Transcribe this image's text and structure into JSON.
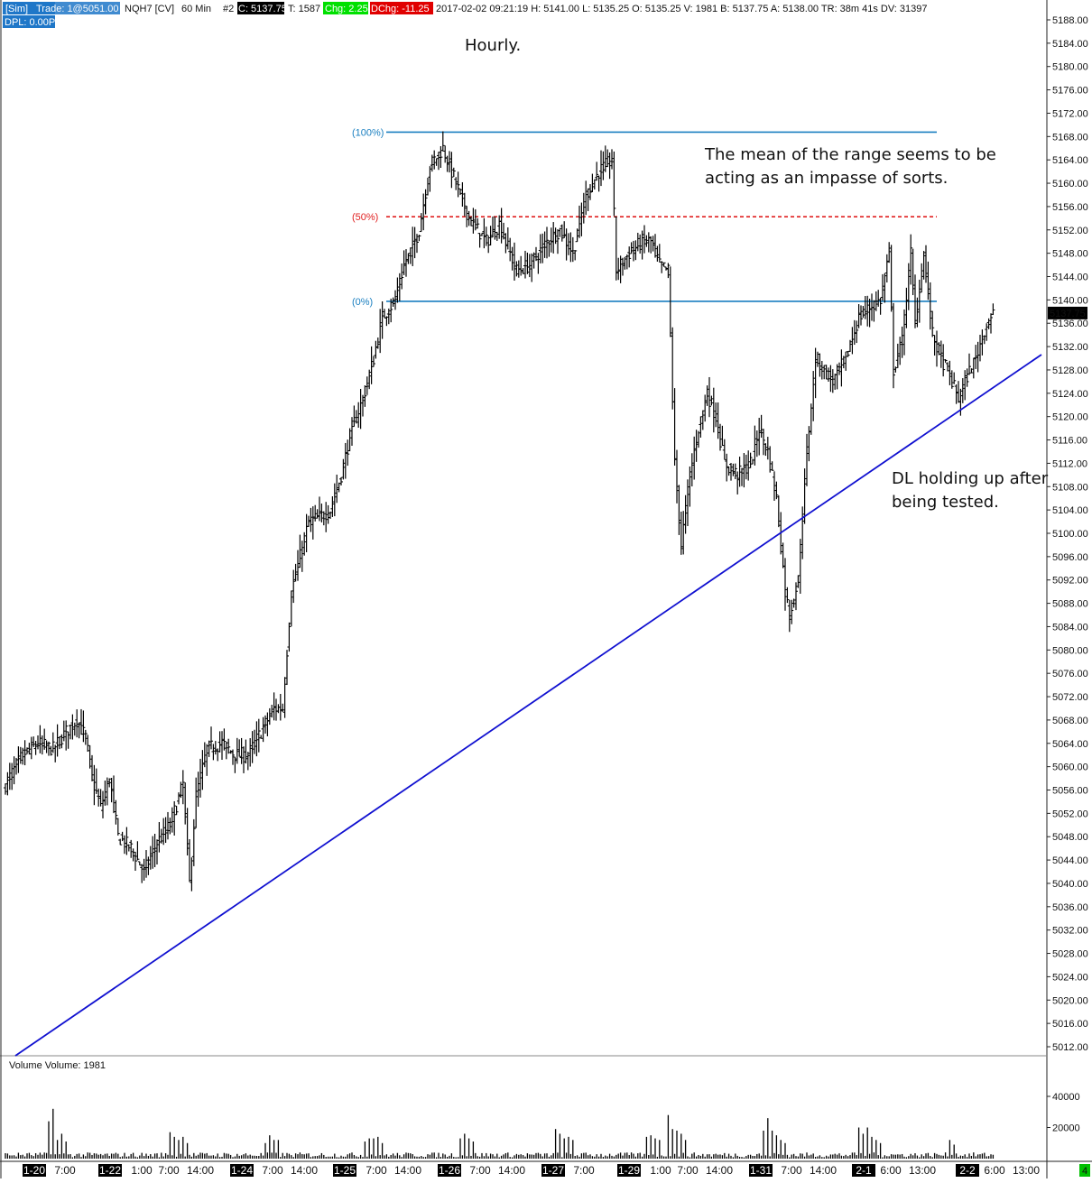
{
  "header": {
    "sim": "[Sim]",
    "trade": "Trade: 1@5051.00",
    "symbol": "NQH7 [CV]",
    "interval": "60 Min",
    "num": "#2",
    "close": "C: 5137.75",
    "trades": "T: 1587",
    "chg": "Chg: 2.25",
    "dchg": "DChg: -11.25",
    "info": "2017-02-02 09:21:19 H: 5141.00 L: 5135.25 O: 5135.25 V: 1981 B: 5137.75 A: 5138.00 TR: 38m 41s DV: 31397",
    "dpl": "DPL: 0.00P"
  },
  "colors": {
    "up_sim": "#1f77c8",
    "green": "#00e000",
    "red": "#e00000",
    "fib": "#1a7fc0",
    "fib_mid": "#e02020",
    "trendline": "#1010d0",
    "bar": "#000000"
  },
  "annotations": {
    "title": "Hourly.",
    "mean_line1": "The mean of the range seems to be",
    "mean_line2": "acting as an impasse of sorts.",
    "dl_line1": "DL holding up after",
    "dl_line2": "being tested."
  },
  "volume_label": "Volume  Volume: 1981",
  "corner_badge": "4",
  "chart_data": {
    "type": "ohlc",
    "price_ticks": [
      "5188.00",
      "5184.00",
      "5180.00",
      "5176.00",
      "5172.00",
      "5168.00",
      "5164.00",
      "5160.00",
      "5156.00",
      "5152.00",
      "5148.00",
      "5144.00",
      "5140.00",
      "5136.00",
      "5132.00",
      "5128.00",
      "5124.00",
      "5120.00",
      "5116.00",
      "5112.00",
      "5108.00",
      "5104.00",
      "5100.00",
      "5096.00",
      "5092.00",
      "5088.00",
      "5084.00",
      "5080.00",
      "5076.00",
      "5072.00",
      "5068.00",
      "5064.00",
      "5060.00",
      "5056.00",
      "5052.00",
      "5048.00",
      "5044.00",
      "5040.00",
      "5036.00",
      "5032.00",
      "5028.00",
      "5024.00",
      "5020.00",
      "5016.00",
      "5012.00"
    ],
    "ylim": [
      5009,
      5190
    ],
    "last_price_label": "5137.75",
    "last_price": 5137.75,
    "volume_ticks": [
      "40000",
      "20000"
    ],
    "volume_ylim": [
      0,
      55000
    ],
    "x_labels": [
      {
        "text": "1-20",
        "day": true
      },
      {
        "text": "7:00",
        "day": false
      },
      {
        "text": "1-22",
        "day": true
      },
      {
        "text": "1:00",
        "day": false
      },
      {
        "text": "7:00",
        "day": false
      },
      {
        "text": "14:00",
        "day": false
      },
      {
        "text": "1-24",
        "day": true
      },
      {
        "text": "7:00",
        "day": false
      },
      {
        "text": "14:00",
        "day": false
      },
      {
        "text": "1-25",
        "day": true
      },
      {
        "text": "7:00",
        "day": false
      },
      {
        "text": "14:00",
        "day": false
      },
      {
        "text": "1-26",
        "day": true
      },
      {
        "text": "7:00",
        "day": false
      },
      {
        "text": "14:00",
        "day": false
      },
      {
        "text": "1-27",
        "day": true
      },
      {
        "text": "7:00",
        "day": false
      },
      {
        "text": "1-29",
        "day": true
      },
      {
        "text": "1:00",
        "day": false
      },
      {
        "text": "7:00",
        "day": false
      },
      {
        "text": "14:00",
        "day": false
      },
      {
        "text": "1-31",
        "day": true
      },
      {
        "text": "7:00",
        "day": false
      },
      {
        "text": "14:00",
        "day": false
      },
      {
        "text": "2-1",
        "day": true
      },
      {
        "text": "6:00",
        "day": false
      },
      {
        "text": "13:00",
        "day": false
      },
      {
        "text": "2-2",
        "day": true
      },
      {
        "text": "6:00",
        "day": false
      },
      {
        "text": "13:00",
        "day": false
      }
    ],
    "fib_levels": [
      {
        "label": "(100%)",
        "price": 5168.75
      },
      {
        "label": "(50%)",
        "price": 5154.25
      },
      {
        "label": "(0%)",
        "price": 5139.75
      }
    ],
    "price_anchors": [
      [
        0,
        5057
      ],
      [
        8,
        5062
      ],
      [
        15,
        5064
      ],
      [
        22,
        5063
      ],
      [
        28,
        5066
      ],
      [
        33,
        5068
      ],
      [
        37,
        5065
      ],
      [
        40,
        5058
      ],
      [
        44,
        5053
      ],
      [
        48,
        5058
      ],
      [
        52,
        5048
      ],
      [
        58,
        5046
      ],
      [
        64,
        5042
      ],
      [
        70,
        5047
      ],
      [
        76,
        5050
      ],
      [
        82,
        5057
      ],
      [
        85,
        5040
      ],
      [
        88,
        5055
      ],
      [
        93,
        5063
      ],
      [
        100,
        5064
      ],
      [
        106,
        5062
      ],
      [
        112,
        5062
      ],
      [
        118,
        5066
      ],
      [
        124,
        5070
      ],
      [
        128,
        5070
      ],
      [
        132,
        5090
      ],
      [
        136,
        5096
      ],
      [
        140,
        5102
      ],
      [
        146,
        5103
      ],
      [
        150,
        5104
      ],
      [
        155,
        5110
      ],
      [
        160,
        5118
      ],
      [
        165,
        5123
      ],
      [
        170,
        5130
      ],
      [
        174,
        5137
      ],
      [
        180,
        5140
      ],
      [
        184,
        5146
      ],
      [
        188,
        5149
      ],
      [
        191,
        5152
      ],
      [
        196,
        5163
      ],
      [
        202,
        5166
      ],
      [
        208,
        5160
      ],
      [
        214,
        5154
      ],
      [
        222,
        5150
      ],
      [
        228,
        5153
      ],
      [
        236,
        5145
      ],
      [
        242,
        5146
      ],
      [
        250,
        5150
      ],
      [
        256,
        5152
      ],
      [
        262,
        5148
      ],
      [
        268,
        5158
      ],
      [
        274,
        5162
      ],
      [
        280,
        5164
      ],
      [
        282,
        5145
      ],
      [
        288,
        5148
      ],
      [
        294,
        5150
      ],
      [
        298,
        5150
      ],
      [
        302,
        5146
      ],
      [
        306,
        5145
      ],
      [
        309,
        5112
      ],
      [
        312,
        5098
      ],
      [
        316,
        5110
      ],
      [
        320,
        5118
      ],
      [
        324,
        5124
      ],
      [
        328,
        5120
      ],
      [
        332,
        5112
      ],
      [
        338,
        5110
      ],
      [
        344,
        5112
      ],
      [
        348,
        5118
      ],
      [
        352,
        5114
      ],
      [
        356,
        5106
      ],
      [
        360,
        5090
      ],
      [
        362,
        5086
      ],
      [
        366,
        5092
      ],
      [
        370,
        5114
      ],
      [
        374,
        5130
      ],
      [
        378,
        5128
      ],
      [
        382,
        5126
      ],
      [
        388,
        5130
      ],
      [
        394,
        5137
      ],
      [
        400,
        5139
      ],
      [
        404,
        5140
      ],
      [
        408,
        5148
      ],
      [
        410,
        5128
      ],
      [
        414,
        5133
      ],
      [
        418,
        5148
      ],
      [
        420,
        5136
      ],
      [
        424,
        5148
      ],
      [
        428,
        5134
      ],
      [
        432,
        5130
      ],
      [
        436,
        5127
      ],
      [
        440,
        5123
      ],
      [
        444,
        5127
      ],
      [
        448,
        5130
      ],
      [
        452,
        5135
      ],
      [
        456,
        5137.75
      ]
    ],
    "volume_spikes": [
      [
        20,
        24000
      ],
      [
        22,
        32000
      ],
      [
        24,
        12000
      ],
      [
        26,
        16000
      ],
      [
        28,
        11000
      ],
      [
        76,
        17000
      ],
      [
        78,
        14000
      ],
      [
        80,
        12000
      ],
      [
        82,
        14000
      ],
      [
        84,
        10000
      ],
      [
        120,
        10000
      ],
      [
        122,
        15000
      ],
      [
        124,
        12000
      ],
      [
        126,
        12000
      ],
      [
        166,
        11000
      ],
      [
        168,
        13000
      ],
      [
        170,
        13000
      ],
      [
        172,
        14000
      ],
      [
        174,
        10000
      ],
      [
        210,
        13000
      ],
      [
        212,
        16000
      ],
      [
        214,
        13000
      ],
      [
        216,
        11000
      ],
      [
        254,
        19000
      ],
      [
        256,
        16000
      ],
      [
        258,
        13000
      ],
      [
        260,
        14000
      ],
      [
        262,
        12000
      ],
      [
        296,
        14000
      ],
      [
        298,
        15000
      ],
      [
        300,
        13000
      ],
      [
        302,
        12000
      ],
      [
        306,
        28000
      ],
      [
        308,
        19000
      ],
      [
        310,
        18000
      ],
      [
        312,
        16000
      ],
      [
        314,
        12000
      ],
      [
        350,
        18000
      ],
      [
        352,
        26000
      ],
      [
        354,
        18000
      ],
      [
        356,
        15000
      ],
      [
        358,
        12000
      ],
      [
        360,
        10000
      ],
      [
        394,
        20000
      ],
      [
        396,
        16000
      ],
      [
        398,
        20000
      ],
      [
        400,
        14000
      ],
      [
        402,
        12000
      ],
      [
        404,
        10000
      ],
      [
        436,
        12000
      ],
      [
        438,
        9000
      ]
    ]
  }
}
